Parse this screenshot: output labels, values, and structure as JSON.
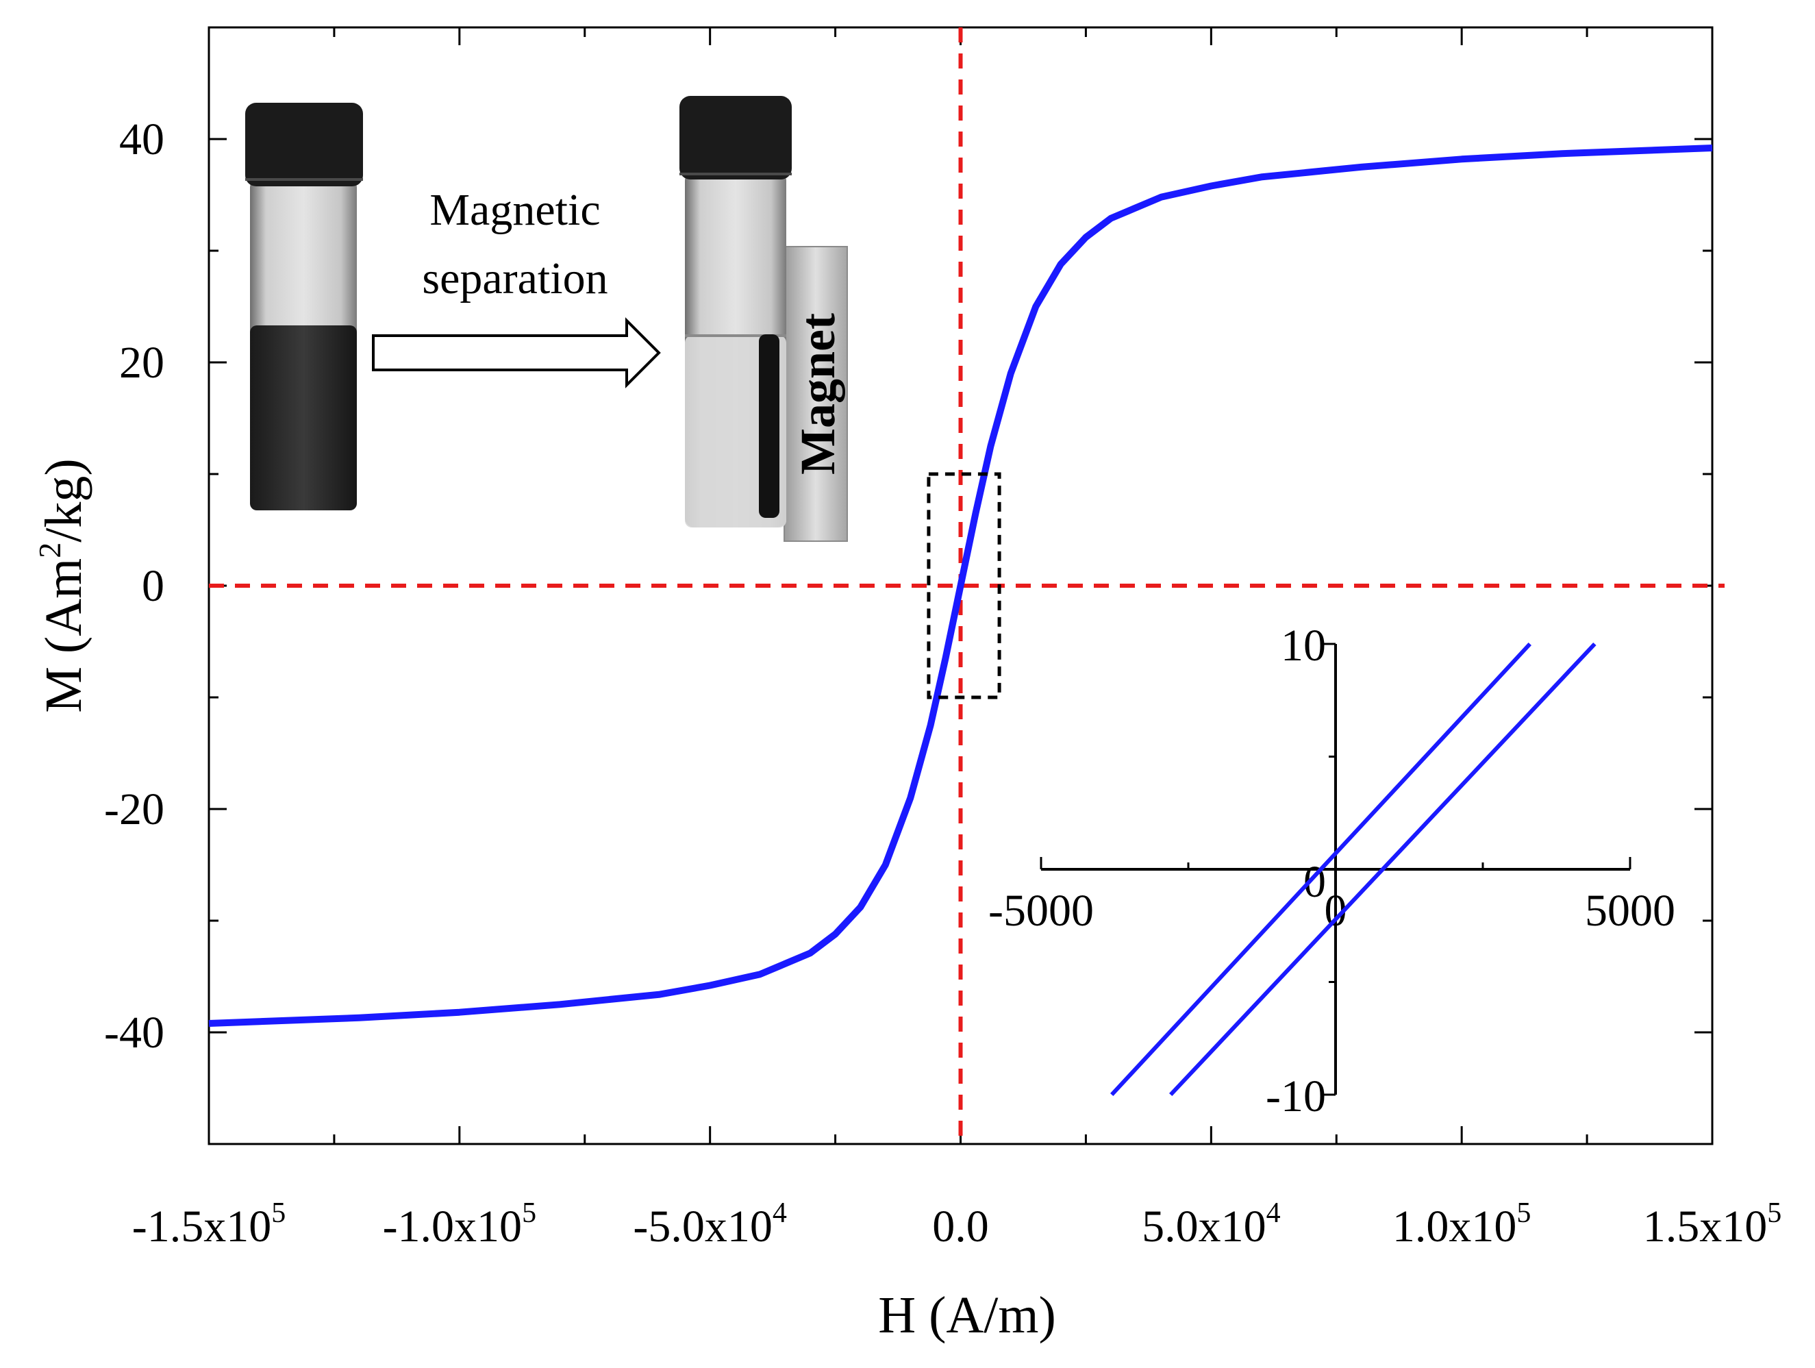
{
  "chart_data": [
    {
      "type": "line",
      "name": "main-hysteresis",
      "xlabel": "H (A/m)",
      "ylabel_main": "M (Am",
      "ylabel_sup": "2",
      "ylabel_tail": "/kg)",
      "xlim": [
        -150000,
        150000
      ],
      "ylim": [
        -50,
        50
      ],
      "x_ticks": [
        {
          "value": -150000,
          "mantissa": "-1.5x10",
          "exp": "5"
        },
        {
          "value": -100000,
          "mantissa": "-1.0x10",
          "exp": "5"
        },
        {
          "value": -50000,
          "mantissa": "-5.0x10",
          "exp": "4"
        },
        {
          "value": 0,
          "mantissa": "0.0",
          "exp": ""
        },
        {
          "value": 50000,
          "mantissa": "5.0x10",
          "exp": "4"
        },
        {
          "value": 100000,
          "mantissa": "1.0x10",
          "exp": "5"
        },
        {
          "value": 150000,
          "mantissa": "1.5x10",
          "exp": "5"
        }
      ],
      "y_ticks": [
        {
          "value": -40,
          "label": "-40"
        },
        {
          "value": -20,
          "label": "-20"
        },
        {
          "value": 0,
          "label": "0"
        },
        {
          "value": 20,
          "label": "20"
        },
        {
          "value": 40,
          "label": "40"
        }
      ],
      "series": [
        {
          "name": "M-H loop",
          "color": "#1a1aff",
          "x": [
            -150000,
            -120000,
            -100000,
            -80000,
            -60000,
            -50000,
            -40000,
            -30000,
            -25000,
            -20000,
            -15000,
            -10000,
            -6000,
            -3000,
            0,
            3000,
            6000,
            10000,
            15000,
            20000,
            25000,
            30000,
            40000,
            50000,
            60000,
            80000,
            100000,
            120000,
            150000
          ],
          "y": [
            -39.2,
            -38.7,
            -38.2,
            -37.5,
            -36.6,
            -35.8,
            -34.8,
            -32.9,
            -31.2,
            -28.8,
            -25.0,
            -19.0,
            -12.5,
            -6.5,
            0,
            6.5,
            12.5,
            19.0,
            25.0,
            28.8,
            31.2,
            32.9,
            34.8,
            35.8,
            36.6,
            37.5,
            38.2,
            38.7,
            39.2
          ]
        }
      ],
      "reference_lines": {
        "color": "#e81c1c",
        "x": 0,
        "y": 0
      },
      "zoom_box": {
        "x_range": [
          -5000,
          5000
        ],
        "y_range": [
          -10,
          10
        ]
      }
    },
    {
      "type": "line",
      "name": "inset-hysteresis",
      "xlim": [
        -5000,
        5000
      ],
      "ylim": [
        -10,
        10
      ],
      "x_ticks": [
        {
          "value": -5000,
          "label": "-5000"
        },
        {
          "value": 0,
          "label": "0"
        },
        {
          "value": 5000,
          "label": "5000"
        }
      ],
      "y_ticks": [
        {
          "value": 10,
          "label": "10"
        },
        {
          "value": 0,
          "label": "0"
        },
        {
          "value": -10,
          "label": "-10"
        }
      ],
      "series": [
        {
          "name": "ascending branch",
          "color": "#1a1aff",
          "x": [
            -3800,
            3300
          ],
          "y": [
            -10,
            10
          ]
        },
        {
          "name": "descending branch",
          "color": "#1a1aff",
          "x": [
            -2800,
            4400
          ],
          "y": [
            -10,
            10
          ]
        }
      ]
    }
  ],
  "photos": {
    "arrow_label_line1": "Magnetic",
    "arrow_label_line2": "separation",
    "magnet_label": "Magnet"
  }
}
